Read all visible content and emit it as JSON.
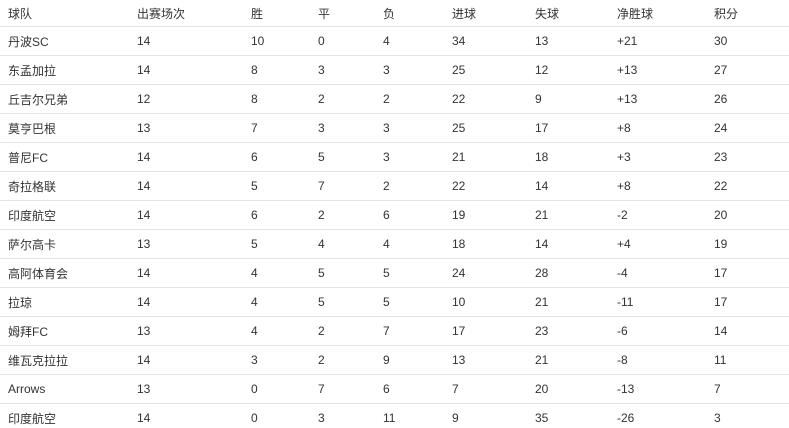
{
  "table": {
    "header": [
      "球队",
      "出赛场次",
      "胜",
      "平",
      "负",
      "进球",
      "失球",
      "净胜球",
      "积分"
    ],
    "rows": [
      [
        "丹波SC",
        14,
        10,
        0,
        4,
        34,
        13,
        "+21",
        30
      ],
      [
        "东孟加拉",
        14,
        8,
        3,
        3,
        25,
        12,
        "+13",
        27
      ],
      [
        "丘吉尔兄弟",
        12,
        8,
        2,
        2,
        22,
        9,
        "+13",
        26
      ],
      [
        "莫亨巴根",
        13,
        7,
        3,
        3,
        25,
        17,
        "+8",
        24
      ],
      [
        "普尼FC",
        14,
        6,
        5,
        3,
        21,
        18,
        "+3",
        23
      ],
      [
        "奇拉格联",
        14,
        5,
        7,
        2,
        22,
        14,
        "+8",
        22
      ],
      [
        "印度航空",
        14,
        6,
        2,
        6,
        19,
        21,
        -2,
        20
      ],
      [
        "萨尔高卡",
        13,
        5,
        4,
        4,
        18,
        14,
        "+4",
        19
      ],
      [
        "高阿体育会",
        14,
        4,
        5,
        5,
        24,
        28,
        -4,
        17
      ],
      [
        "拉琼",
        14,
        4,
        5,
        5,
        10,
        21,
        -11,
        17
      ],
      [
        "姆拜FC",
        13,
        4,
        2,
        7,
        17,
        23,
        -6,
        14
      ],
      [
        "维瓦克拉拉",
        14,
        3,
        2,
        9,
        13,
        21,
        -8,
        11
      ],
      [
        "Arrows",
        13,
        0,
        7,
        6,
        7,
        20,
        -13,
        7
      ],
      [
        "印度航空",
        14,
        0,
        3,
        11,
        9,
        35,
        -26,
        3
      ]
    ]
  }
}
